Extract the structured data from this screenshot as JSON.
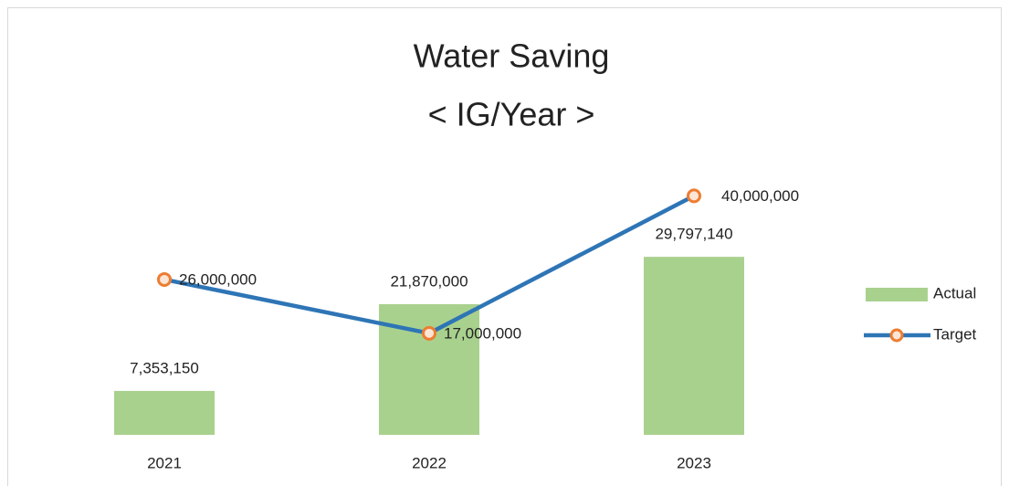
{
  "chart_data": {
    "type": "bar",
    "title": "Water Saving",
    "subtitle": "< IG/Year >",
    "categories": [
      "2021",
      "2022",
      "2023"
    ],
    "series": [
      {
        "name": "Actual",
        "type": "bar",
        "color": "#a9d18e",
        "values": [
          7353150,
          21870000,
          29797140
        ],
        "value_labels": [
          "7,353,150",
          "21,870,000",
          "29,797,140"
        ]
      },
      {
        "name": "Target",
        "type": "line",
        "color": "#2e75b6",
        "marker_color": "#ed7d31",
        "values": [
          26000000,
          17000000,
          40000000
        ],
        "value_labels": [
          "26,000,000",
          "17,000,000",
          "40,000,000"
        ]
      }
    ],
    "ylim": [
      0,
      50000000
    ],
    "legend": "right"
  }
}
